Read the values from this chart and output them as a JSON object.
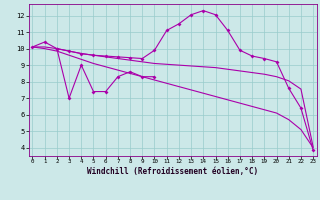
{
  "xlabel": "Windchill (Refroidissement éolien,°C)",
  "background_color": "#cce8e8",
  "grid_color": "#99cccc",
  "line_color": "#aa00aa",
  "x_ticks": [
    0,
    1,
    2,
    3,
    4,
    5,
    6,
    7,
    8,
    9,
    10,
    11,
    12,
    13,
    14,
    15,
    16,
    17,
    18,
    19,
    20,
    21,
    22,
    23
  ],
  "y_ticks": [
    4,
    5,
    6,
    7,
    8,
    9,
    10,
    11,
    12
  ],
  "ylim": [
    3.5,
    12.7
  ],
  "xlim": [
    -0.3,
    23.3
  ],
  "line1_x": [
    0,
    1,
    2,
    3,
    4,
    5,
    6,
    7,
    8,
    9,
    10,
    11,
    12,
    13,
    14,
    15,
    16,
    17,
    18,
    19,
    20,
    21,
    22,
    23
  ],
  "line1_y": [
    10.1,
    10.4,
    10.0,
    9.85,
    9.7,
    9.6,
    9.55,
    9.5,
    9.45,
    9.4,
    9.9,
    11.1,
    11.5,
    12.05,
    12.3,
    12.05,
    11.1,
    9.9,
    9.55,
    9.4,
    9.2,
    7.6,
    6.4,
    3.85
  ],
  "line2_x": [
    0,
    1,
    2,
    3,
    4,
    5,
    6,
    7,
    8,
    9,
    10,
    11,
    12,
    13,
    14,
    15,
    16,
    17,
    18,
    19,
    20,
    21,
    22,
    23
  ],
  "line2_y": [
    10.1,
    10.1,
    10.0,
    9.85,
    9.7,
    9.6,
    9.5,
    9.4,
    9.3,
    9.2,
    9.1,
    9.05,
    9.0,
    8.95,
    8.9,
    8.85,
    8.75,
    8.65,
    8.55,
    8.45,
    8.3,
    8.05,
    7.55,
    4.05
  ],
  "line3_x": [
    0,
    1,
    2,
    3,
    4,
    5,
    6,
    7,
    8,
    9,
    10,
    11,
    12,
    13,
    14,
    15,
    16,
    17,
    18,
    19,
    20,
    21,
    22,
    23
  ],
  "line3_y": [
    10.1,
    10.0,
    9.85,
    9.6,
    9.35,
    9.1,
    8.9,
    8.7,
    8.5,
    8.3,
    8.1,
    7.9,
    7.7,
    7.5,
    7.3,
    7.1,
    6.9,
    6.7,
    6.5,
    6.3,
    6.1,
    5.7,
    5.1,
    4.0
  ],
  "line4_x": [
    2,
    3,
    4,
    5,
    6,
    7,
    8,
    9,
    10
  ],
  "line4_y": [
    10.0,
    7.0,
    9.0,
    7.4,
    7.4,
    8.3,
    8.6,
    8.3,
    8.3
  ]
}
